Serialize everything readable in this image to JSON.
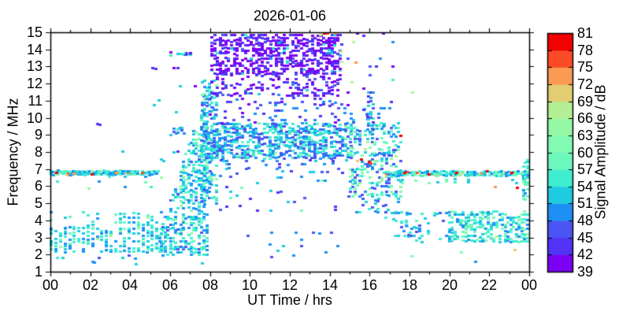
{
  "chart_data": {
    "type": "scatter",
    "title": "2026-01-06",
    "xlabel": "UT Time / hrs",
    "ylabel": "Frequency / MHz",
    "xlim": [
      0,
      24
    ],
    "ylim": [
      1,
      15
    ],
    "grid": false,
    "x_ticks": {
      "major_labels": [
        "00",
        "02",
        "04",
        "06",
        "08",
        "10",
        "12",
        "14",
        "16",
        "18",
        "20",
        "22",
        "00"
      ],
      "major_hours": [
        0,
        2,
        4,
        6,
        8,
        10,
        12,
        14,
        16,
        18,
        20,
        22,
        24
      ],
      "minor_hours": [
        1,
        3,
        5,
        7,
        9,
        11,
        13,
        15,
        17,
        19,
        21,
        23
      ]
    },
    "y_ticks": [
      1,
      2,
      3,
      4,
      5,
      6,
      7,
      8,
      9,
      10,
      11,
      12,
      13,
      14,
      15
    ],
    "colorbar": {
      "label": "Signal Amplitude / dB",
      "levels": [
        39,
        42,
        45,
        48,
        51,
        54,
        57,
        60,
        63,
        66,
        69,
        72,
        75,
        78,
        81
      ],
      "colors": [
        "#7c00f3",
        "#5133f6",
        "#4b55f3",
        "#1e90f5",
        "#1fcbe1",
        "#3fedd1",
        "#6cf7bd",
        "#81fab2",
        "#95f8a5",
        "#b4ef95",
        "#e2cd71",
        "#fb9a52",
        "#fb4b26",
        "#f30000"
      ]
    },
    "points_encoding": "dense spectrogram approximated by generative regions: t=UT hours, f=MHz, amp=dB mapped to colorbar bins",
    "regions": [
      {
        "name": "night-fixed-6.8MHz",
        "t": [
          0.05,
          5.4
        ],
        "dt": 0.12,
        "f": [
          6.7,
          6.88
        ],
        "df": 0.09,
        "p": 0.9,
        "amp": [
          48,
          58
        ],
        "outliers": [
          {
            "p": 0.04,
            "amp": [
              63,
              72
            ]
          },
          {
            "p": 0.025,
            "amp": [
              73,
              81
            ]
          }
        ]
      },
      {
        "name": "night-6.2-6.6-scatter",
        "t": [
          0.1,
          5.6
        ],
        "dt": 0.26,
        "f": [
          5.95,
          6.6
        ],
        "df": 0.3,
        "p": 0.14,
        "amp": [
          48,
          58
        ],
        "outliers": [
          {
            "p": 0.06,
            "amp": [
              63,
              69
            ]
          }
        ]
      },
      {
        "name": "night-low-core",
        "t": [
          0.05,
          5.6
        ],
        "dt": 0.23,
        "f": [
          2.2,
          3.6
        ],
        "df": 0.15,
        "p": 0.55,
        "amp": [
          48,
          58
        ],
        "outliers": [
          {
            "p": 0.05,
            "amp": [
              59,
              67
            ]
          }
        ]
      },
      {
        "name": "night-low-upper",
        "t": [
          0.05,
          5.6
        ],
        "dt": 0.23,
        "f": [
          3.6,
          4.55
        ],
        "df": 0.15,
        "p": 0.26,
        "amp": [
          48,
          58
        ],
        "outliers": [
          {
            "p": 0.04,
            "amp": [
              59,
              66
            ]
          }
        ]
      },
      {
        "name": "night-low-fringe",
        "t": [
          0.05,
          5.4
        ],
        "dt": 0.3,
        "f": [
          1.6,
          2.2
        ],
        "df": 0.18,
        "p": 0.12,
        "amp": [
          47,
          55
        ]
      },
      {
        "name": "dawn-rise",
        "type": "ramp",
        "t": [
          5.5,
          7.85
        ],
        "dt": 0.13,
        "f_base": 2.0,
        "top_start": 3.4,
        "top_end": 11.8,
        "df": 0.16,
        "p": 0.5,
        "amp": [
          47,
          58
        ],
        "outliers": [
          {
            "p": 0.05,
            "amp": [
              58,
              64
            ]
          }
        ]
      },
      {
        "name": "dawn-6.8-remnant",
        "t": [
          5.4,
          7.6
        ],
        "dt": 0.25,
        "f": [
          6.7,
          6.9
        ],
        "df": 0.1,
        "p": 0.25,
        "amp": [
          48,
          58
        ]
      },
      {
        "name": "sunrise-column-burst",
        "t": [
          7.6,
          8.35
        ],
        "dt": 0.12,
        "f": [
          5.0,
          12.3
        ],
        "df": 0.16,
        "p": 0.42,
        "amp": [
          47,
          58
        ],
        "outliers": [
          {
            "p": 0.06,
            "amp": [
              58,
              64
            ]
          }
        ]
      },
      {
        "name": "day-F-region-band",
        "t": [
          7.8,
          15.15
        ],
        "dt": 0.14,
        "f": [
          7.7,
          9.7
        ],
        "df": 0.13,
        "p": 0.55,
        "amp": [
          45,
          57
        ],
        "outliers": [
          {
            "p": 0.03,
            "amp": [
              57,
              63
            ]
          }
        ]
      },
      {
        "name": "day-F-band-fringe",
        "t": [
          8.0,
          15.1
        ],
        "dt": 0.14,
        "f": [
          6.9,
          7.7
        ],
        "df": 0.2,
        "p": 0.15,
        "amp": [
          44,
          54
        ]
      },
      {
        "name": "day-mid-sparse",
        "t": [
          8.0,
          15.2
        ],
        "dt": 0.17,
        "f": [
          4.6,
          6.9
        ],
        "df": 0.22,
        "p": 0.09,
        "amp": [
          42,
          53
        ],
        "outliers": [
          {
            "p": 0.05,
            "amp": [
              57,
              62
            ]
          }
        ]
      },
      {
        "name": "day-high-violet-core",
        "t": [
          8.1,
          14.55
        ],
        "dt": 0.14,
        "f": [
          12.6,
          15.0
        ],
        "df": 0.15,
        "p": 0.58,
        "amp": [
          39,
          44
        ],
        "outliers": [
          {
            "p": 0.05,
            "amp": [
              45,
              50
            ]
          },
          {
            "p": 0.03,
            "amp": [
              51,
              56
            ]
          }
        ]
      },
      {
        "name": "day-high-violet-lower",
        "t": [
          8.1,
          14.55
        ],
        "dt": 0.14,
        "f": [
          11.3,
          12.6
        ],
        "df": 0.16,
        "p": 0.34,
        "amp": [
          39,
          46
        ],
        "outliers": [
          {
            "p": 0.07,
            "amp": [
              48,
              56
            ]
          }
        ]
      },
      {
        "name": "day-upper-mid-sparse",
        "t": [
          8.0,
          15.05
        ],
        "dt": 0.15,
        "f": [
          9.7,
          11.3
        ],
        "df": 0.18,
        "p": 0.17,
        "amp": [
          41,
          51
        ]
      },
      {
        "name": "day-bottom-sparse",
        "t": [
          8.4,
          15.1
        ],
        "dt": 0.3,
        "f": [
          1.9,
          3.6
        ],
        "df": 0.2,
        "p": 0.06,
        "amp": [
          46,
          54
        ]
      },
      {
        "name": "pm-cluster-core",
        "t": [
          15.05,
          17.6
        ],
        "dt": 0.12,
        "f": [
          5.4,
          9.7
        ],
        "df": 0.16,
        "p": 0.32,
        "amp": [
          45,
          62
        ],
        "outliers": [
          {
            "p": 0.05,
            "amp": [
              63,
              70
            ]
          },
          {
            "p": 0.012,
            "amp": [
              74,
              81
            ]
          }
        ]
      },
      {
        "name": "pm-cluster-upper",
        "t": [
          15.05,
          17.5
        ],
        "dt": 0.14,
        "f": [
          9.7,
          10.7
        ],
        "df": 0.18,
        "p": 0.15,
        "amp": [
          44,
          56
        ]
      },
      {
        "name": "pm-cluster-lower",
        "t": [
          15.2,
          17.6
        ],
        "dt": 0.16,
        "f": [
          4.5,
          5.4
        ],
        "df": 0.2,
        "p": 0.14,
        "amp": [
          46,
          58
        ]
      },
      {
        "name": "pm-high-sparse",
        "t": [
          14.6,
          17.3
        ],
        "dt": 0.16,
        "f": [
          9.5,
          15.0
        ],
        "df": 0.25,
        "p": 0.05,
        "amp": [
          39,
          50
        ],
        "outliers": [
          {
            "p": 0.1,
            "amp": [
              51,
              56
            ]
          }
        ]
      },
      {
        "name": "pm-16h-column",
        "t": [
          15.95,
          16.3
        ],
        "dt": 0.12,
        "f": [
          9.4,
          11.6
        ],
        "df": 0.16,
        "p": 0.4,
        "amp": [
          43,
          54
        ]
      },
      {
        "name": "evening-fixed-6.8MHz",
        "t": [
          16.85,
          24.0
        ],
        "dt": 0.12,
        "f": [
          6.68,
          6.86
        ],
        "df": 0.09,
        "p": 0.85,
        "amp": [
          48,
          60
        ],
        "outliers": [
          {
            "p": 0.12,
            "amp": [
              63,
              72
            ]
          },
          {
            "p": 0.04,
            "amp": [
              73,
              81
            ]
          }
        ]
      },
      {
        "name": "evening-6.3-6.5-line",
        "t": [
          17.0,
          24.0
        ],
        "dt": 0.22,
        "f": [
          6.25,
          6.55
        ],
        "df": 0.15,
        "p": 0.16,
        "amp": [
          50,
          62
        ]
      },
      {
        "name": "evening-low-early",
        "t": [
          17.3,
          20.0
        ],
        "dt": 0.15,
        "f": [
          2.8,
          4.6
        ],
        "df": 0.15,
        "p": 0.13,
        "amp": [
          47,
          59
        ]
      },
      {
        "name": "evening-low-late",
        "t": [
          20.0,
          24.0
        ],
        "dt": 0.14,
        "f": [
          2.8,
          4.5
        ],
        "df": 0.14,
        "p": 0.45,
        "amp": [
          48,
          61
        ],
        "outliers": [
          {
            "p": 0.04,
            "amp": [
              61,
              67
            ]
          }
        ]
      },
      {
        "name": "evening-desc-arc",
        "type": "arc",
        "t": [
          15.9,
          18.7
        ],
        "dt": 0.13,
        "fc_start": 5.3,
        "fc_end": 2.9,
        "spread": 0.45,
        "p": 0.33,
        "amp": [
          46,
          57
        ]
      },
      {
        "name": "dusk-13.8MHz-line",
        "t": [
          6.05,
          7.1
        ],
        "dt": 0.09,
        "f": [
          13.72,
          13.86
        ],
        "df": 0.1,
        "p": 0.55,
        "amp": [
          51,
          56
        ],
        "outliers": [
          {
            "p": 0.5,
            "amp": [
              39,
              44
            ]
          }
        ]
      },
      {
        "name": "right-edge-stack",
        "t": [
          23.72,
          24.0
        ],
        "dt": 0.1,
        "f": [
          5.3,
          7.6
        ],
        "df": 0.16,
        "p": 0.45,
        "amp": [
          48,
          62
        ]
      },
      {
        "name": "pre-dawn-9.3-cluster",
        "t": [
          6.2,
          6.75
        ],
        "dt": 0.1,
        "f": [
          9.15,
          9.45
        ],
        "df": 0.12,
        "p": 0.5,
        "amp": [
          45,
          55
        ],
        "outliers": [
          {
            "p": 0.18,
            "amp": [
              66,
              80
            ]
          }
        ]
      }
    ],
    "extra_points": [
      [
        2.35,
        9.6,
        43
      ],
      [
        2.5,
        9.6,
        43
      ],
      [
        3.62,
        8.05,
        52
      ],
      [
        5.15,
        12.9,
        42
      ],
      [
        5.3,
        12.9,
        43
      ],
      [
        5.2,
        10.75,
        52
      ],
      [
        5.45,
        11.05,
        52
      ],
      [
        5.55,
        7.55,
        52
      ],
      [
        5.7,
        7.5,
        53
      ],
      [
        6.2,
        12.95,
        41
      ],
      [
        6.4,
        12.9,
        42
      ],
      [
        6.5,
        11.9,
        52
      ],
      [
        6.3,
        10.35,
        52
      ],
      [
        6.05,
        9.0,
        52
      ],
      [
        6.2,
        8.0,
        52
      ],
      [
        6.4,
        8.05,
        44
      ],
      [
        7.25,
        11.9,
        41
      ],
      [
        13.75,
        14.95,
        80
      ],
      [
        13.9,
        14.95,
        77
      ],
      [
        14.3,
        14.95,
        73
      ],
      [
        13.55,
        14.9,
        67
      ],
      [
        14.55,
        13.9,
        68
      ],
      [
        14.6,
        13.3,
        67
      ],
      [
        15.2,
        14.5,
        67
      ],
      [
        15.3,
        13.25,
        73
      ],
      [
        15.1,
        12.1,
        67
      ],
      [
        15.6,
        7.6,
        79
      ],
      [
        16.0,
        7.45,
        80
      ],
      [
        16.05,
        7.3,
        76
      ],
      [
        16.7,
        14.9,
        41
      ],
      [
        17.1,
        10.9,
        42
      ],
      [
        18.15,
        11.5,
        67
      ],
      [
        23.3,
        2.3,
        71
      ],
      [
        23.4,
        5.9,
        79
      ],
      [
        22.3,
        6.0,
        73
      ],
      [
        9.6,
        5.9,
        60
      ],
      [
        12.2,
        1.95,
        50
      ],
      [
        11.0,
        2.6,
        50
      ],
      [
        18.1,
        1.9,
        60
      ],
      [
        21.3,
        1.6,
        50
      ],
      [
        2.2,
        1.5,
        50
      ],
      [
        4.3,
        1.45,
        51
      ],
      [
        7.6,
        1.5,
        52
      ],
      [
        0.3,
        6.78,
        79
      ],
      [
        1.2,
        6.8,
        74
      ],
      [
        2.1,
        6.76,
        78
      ],
      [
        3.3,
        6.8,
        72
      ],
      [
        4.6,
        6.78,
        75
      ],
      [
        17.75,
        6.78,
        79
      ],
      [
        19.0,
        6.76,
        80
      ],
      [
        20.35,
        6.8,
        78
      ],
      [
        21.6,
        6.77,
        74
      ],
      [
        23.15,
        6.76,
        80
      ],
      [
        22.4,
        3.1,
        68
      ],
      [
        20.6,
        2.1,
        60
      ]
    ]
  }
}
